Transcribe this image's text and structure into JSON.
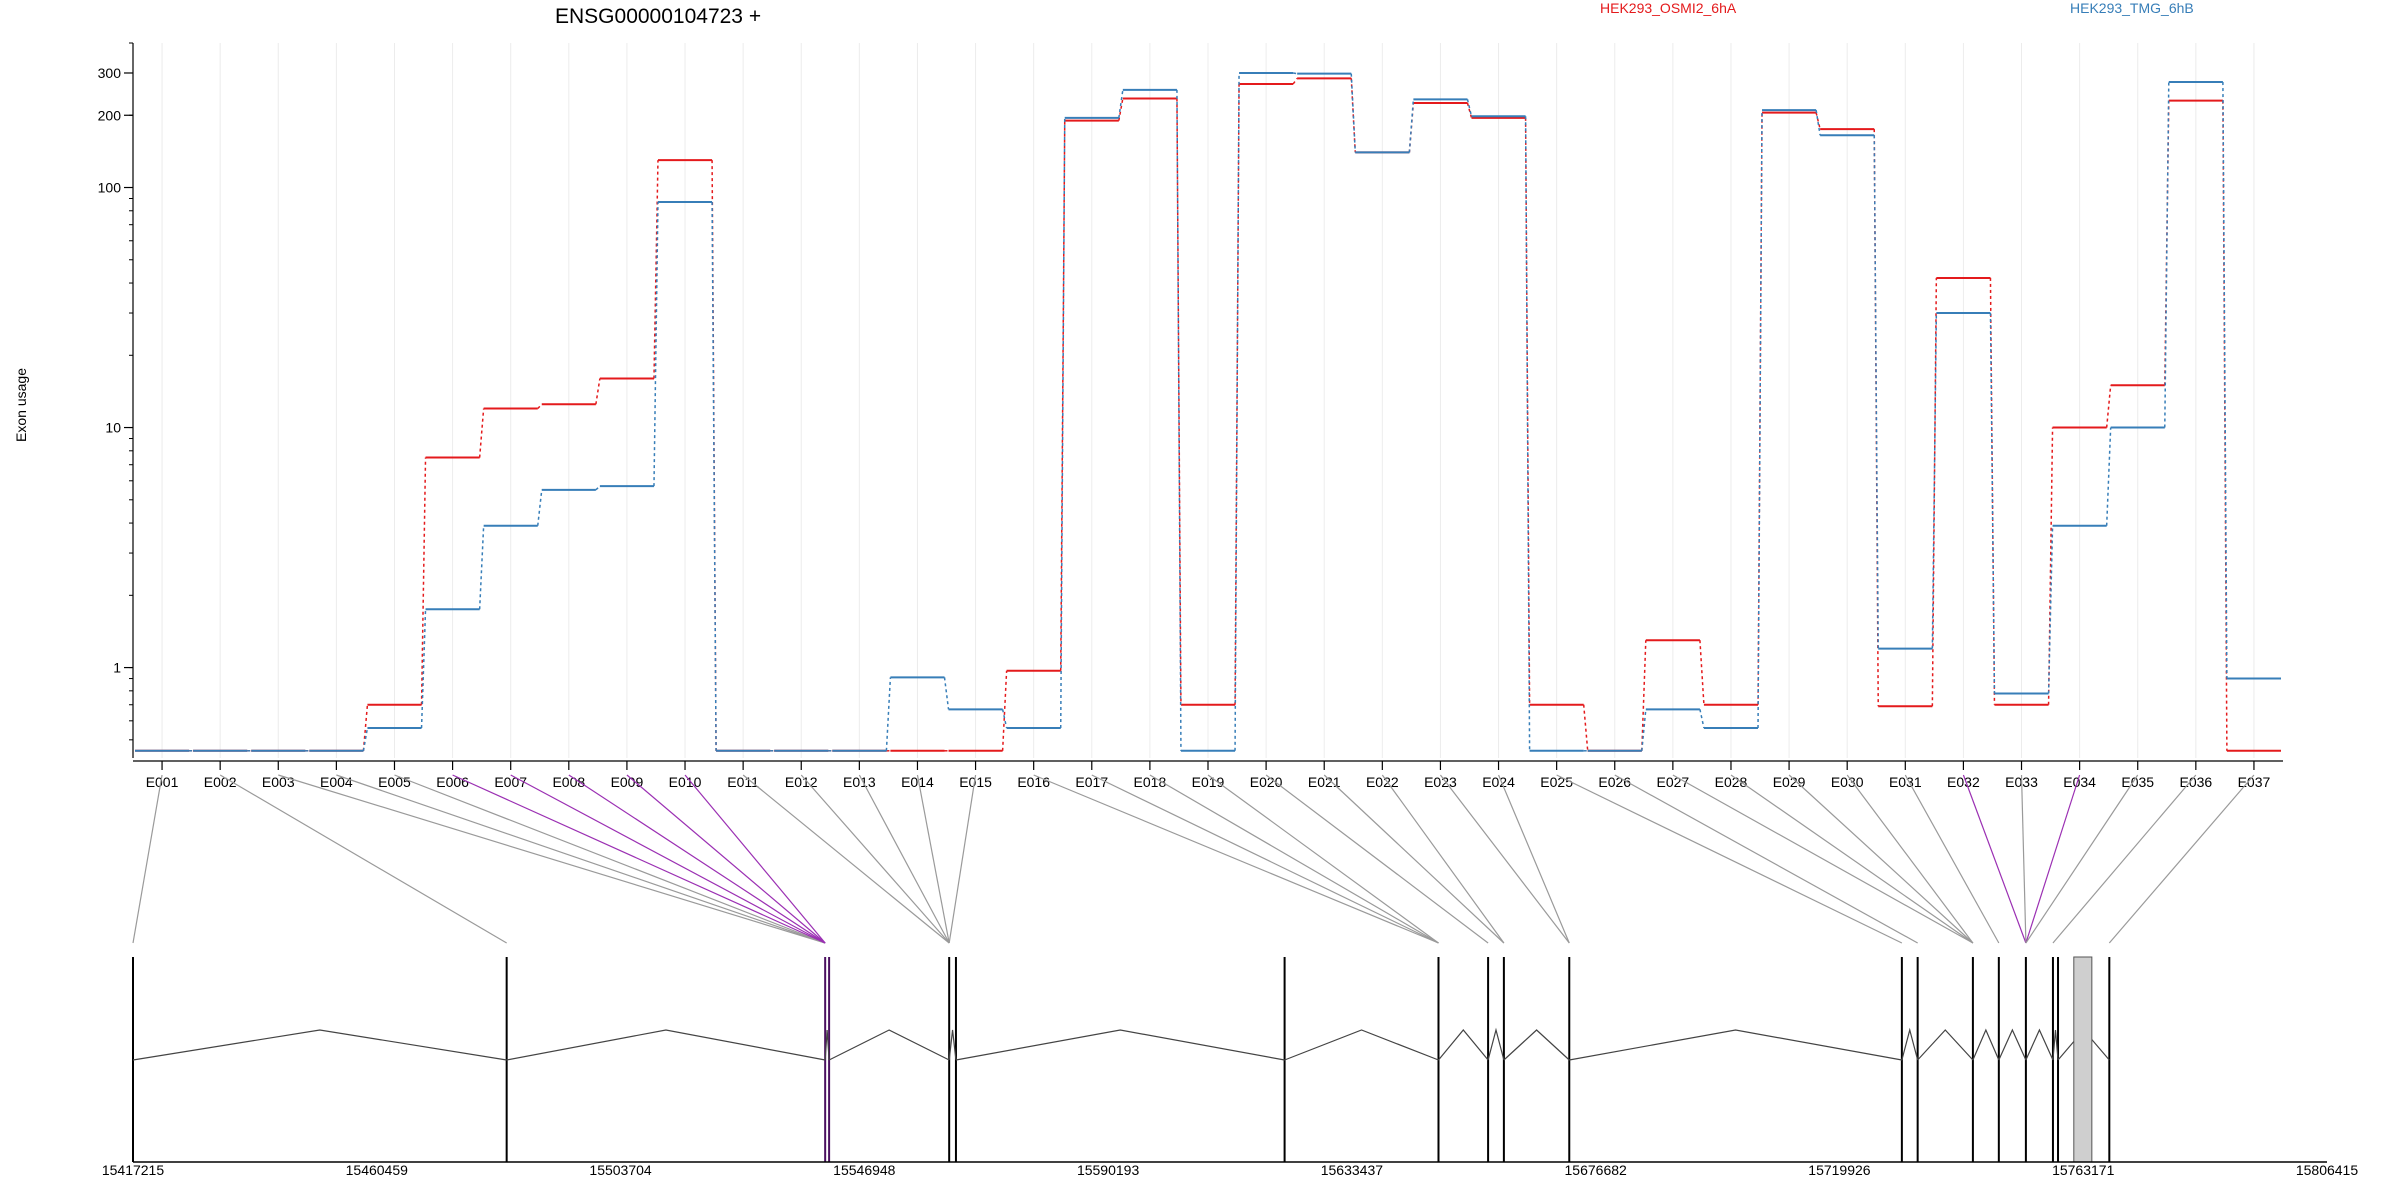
{
  "chart_data": {
    "type": "line",
    "title": "ENSG00000104723 +",
    "ylabel": "Exon usage",
    "y_scale": "log",
    "ylim": [
      0.42,
      400
    ],
    "y_ticks": [
      1,
      10,
      100,
      200,
      300
    ],
    "y_tick_labels": [
      "1",
      "10",
      "100",
      "200",
      "300"
    ],
    "categories": [
      "E001",
      "E002",
      "E003",
      "E004",
      "E005",
      "E006",
      "E007",
      "E008",
      "E009",
      "E010",
      "E011",
      "E012",
      "E013",
      "E014",
      "E015",
      "E016",
      "E017",
      "E018",
      "E019",
      "E020",
      "E021",
      "E022",
      "E023",
      "E024",
      "E025",
      "E026",
      "E027",
      "E028",
      "E029",
      "E030",
      "E031",
      "E032",
      "E033",
      "E034",
      "E035",
      "E036",
      "E037"
    ],
    "series": [
      {
        "name": "HEK293_OSMI2_6hA",
        "color": "#e41a1c",
        "values": [
          0.45,
          0.45,
          0.45,
          0.45,
          0.7,
          7.5,
          12,
          12.5,
          16,
          130,
          0.45,
          0.45,
          0.45,
          0.45,
          0.45,
          0.97,
          190,
          235,
          0.7,
          270,
          285,
          140,
          225,
          195,
          0.7,
          0.45,
          1.3,
          0.7,
          205,
          175,
          0.69,
          42,
          0.7,
          10,
          15,
          230,
          0.45
        ]
      },
      {
        "name": "HEK293_TMG_6hB",
        "color": "#377eb8",
        "values": [
          0.45,
          0.45,
          0.45,
          0.45,
          0.56,
          1.75,
          3.9,
          5.5,
          5.7,
          87,
          0.45,
          0.45,
          0.45,
          0.91,
          0.67,
          0.56,
          195,
          255,
          0.45,
          300,
          298,
          140,
          233,
          198,
          0.45,
          0.45,
          0.67,
          0.56,
          210,
          165,
          1.2,
          30,
          0.78,
          3.9,
          10,
          275,
          0.9
        ]
      }
    ],
    "highlighted_exons": [
      "E006",
      "E007",
      "E008",
      "E009",
      "E010",
      "E032",
      "E034"
    ],
    "genomic_axis": {
      "range": [
        15417215,
        15806415
      ],
      "tick_labels": [
        "15417215",
        "15460459",
        "15503704",
        "15546948",
        "15590193",
        "15633437",
        "15676682",
        "15719926",
        "15763171",
        "15806415"
      ],
      "exon_boundaries": [
        15417215,
        15483500,
        15540000,
        15540700,
        15562000,
        15563200,
        15621500,
        15648800,
        15657600,
        15660400,
        15672000,
        15731000,
        15733800,
        15743600,
        15748200,
        15753000,
        15757800,
        15758700,
        15767800
      ]
    },
    "grid": true,
    "legend_position": "top-right"
  }
}
